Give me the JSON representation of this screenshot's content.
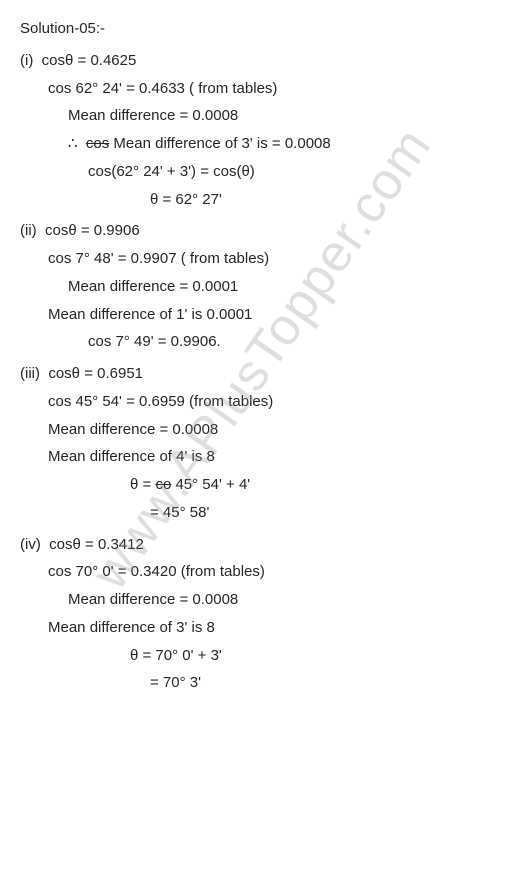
{
  "watermark": "www.APlusTopper.com",
  "colors": {
    "ink": "#262626",
    "paper": "#ffffff",
    "watermark": "rgba(140,140,140,0.28)"
  },
  "title": "Solution-05:-",
  "parts": {
    "i": {
      "label": "(i)",
      "eq": "cosθ = 0.4625",
      "from_tables": "cos 62° 24' = 0.4633   ( from tables)",
      "mean_diff": "Mean difference = 0.0008",
      "mean_diff_of": "∴  cos Mean difference of 3' is = 0.0008",
      "cos_strike": "cos",
      "step": "cos(62° 24' + 3') = cos(θ)",
      "result": "θ = 62° 27'"
    },
    "ii": {
      "label": "(ii)",
      "eq": "cosθ = 0.9906",
      "from_tables": "cos 7° 48' = 0.9907  ( from tables)",
      "mean_diff": "Mean difference  = 0.0001",
      "mean_diff_of": "Mean difference of 1' is 0.0001",
      "result": "cos 7° 49' = 0.9906."
    },
    "iii": {
      "label": "(iii)",
      "eq": "cosθ = 0.6951",
      "from_tables": "cos 45° 54' = 0.6959    (from tables)",
      "mean_diff": "Mean difference = 0.0008",
      "mean_diff_of": "Mean difference of 4' is 8",
      "step_strike": "co",
      "step": "θ =  45° 54' + 4'",
      "result": "= 45° 58'"
    },
    "iv": {
      "label": "(iv)",
      "eq": "cosθ = 0.3412",
      "from_tables": "cos 70° 0' = 0.3420  (from tables)",
      "mean_diff": "Mean difference = 0.0008",
      "mean_diff_of": "Mean difference of 3' is 8",
      "step": "θ = 70° 0' + 3'",
      "result": "= 70° 3'"
    }
  }
}
